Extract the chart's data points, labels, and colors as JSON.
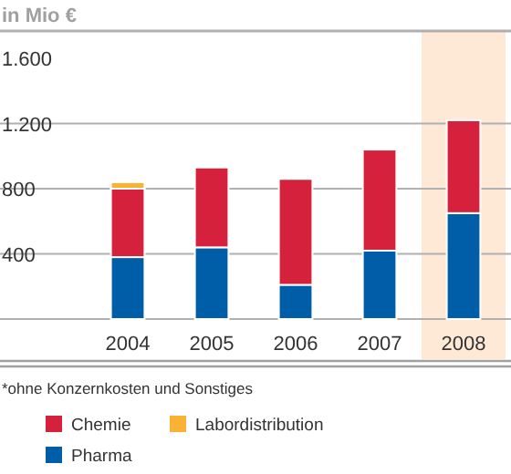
{
  "chart_data": {
    "type": "bar",
    "title": "in Mio €",
    "stacked": true,
    "categories": [
      "2004",
      "2005",
      "2006",
      "2007",
      "2008"
    ],
    "series": [
      {
        "name": "Pharma",
        "color": "#005ea8",
        "values": [
          380,
          440,
          210,
          420,
          650
        ]
      },
      {
        "name": "Chemie",
        "color": "#d5213b",
        "values": [
          420,
          490,
          650,
          620,
          570
        ]
      },
      {
        "name": "Labordistribution",
        "color": "#f9b233",
        "values": [
          40,
          null,
          null,
          null,
          null
        ]
      }
    ],
    "ylim": [
      0,
      1600
    ],
    "yticks": [
      {
        "value": 0,
        "label": null
      },
      {
        "value": 400,
        "label": "400"
      },
      {
        "value": 800,
        "label": "800"
      },
      {
        "value": 1200,
        "label": "1.200"
      },
      {
        "value": 1600,
        "label": "1.600"
      }
    ],
    "grid": "y",
    "bands": [
      {
        "axis": "x",
        "from": "2008",
        "to": "2008",
        "color": "#fde9d6"
      }
    ],
    "annotations": [
      "*ohne Konzernkosten und Sonstiges"
    ],
    "legend": "bottom"
  }
}
